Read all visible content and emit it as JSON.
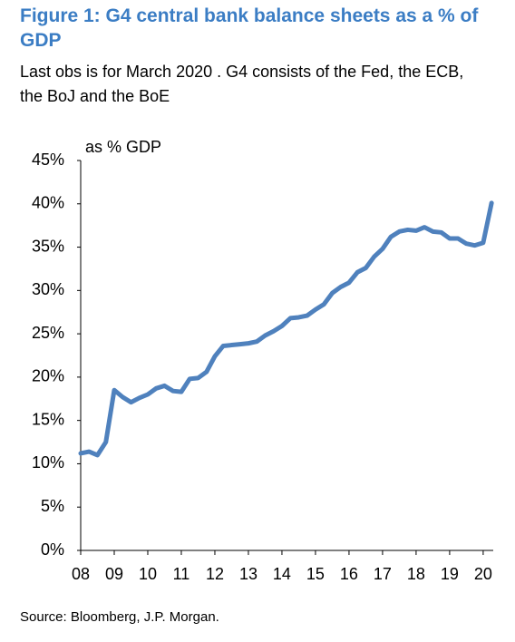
{
  "chart_data": {
    "type": "line",
    "title": "Figure 1: G4 central bank balance sheets as a % of GDP",
    "subtitle": "Last obs is for March 2020 . G4 consists of the Fed, the ECB, the BoJ and the BoE",
    "y_label": "as % GDP",
    "source": "Source: Bloomberg, J.P. Morgan.",
    "color": "#4f81bd",
    "x": [
      2008,
      2008.25,
      2008.5,
      2008.75,
      2009,
      2009.25,
      2009.5,
      2009.75,
      2010,
      2010.25,
      2010.5,
      2010.75,
      2011,
      2011.25,
      2011.5,
      2011.75,
      2012,
      2012.25,
      2012.5,
      2012.75,
      2013,
      2013.25,
      2013.5,
      2013.75,
      2014,
      2014.25,
      2014.5,
      2014.75,
      2015,
      2015.25,
      2015.5,
      2015.75,
      2016,
      2016.25,
      2016.5,
      2016.75,
      2017,
      2017.25,
      2017.5,
      2017.75,
      2018,
      2018.25,
      2018.5,
      2018.75,
      2019,
      2019.25,
      2019.5,
      2019.75,
      2020,
      2020.25
    ],
    "values": [
      11.2,
      11.4,
      11.0,
      12.5,
      18.5,
      17.7,
      17.1,
      17.6,
      18.0,
      18.7,
      19.0,
      18.4,
      18.3,
      19.8,
      19.9,
      20.6,
      22.4,
      23.6,
      23.7,
      23.8,
      23.9,
      24.1,
      24.8,
      25.3,
      25.9,
      26.8,
      26.9,
      27.1,
      27.8,
      28.4,
      29.7,
      30.4,
      30.9,
      32.1,
      32.6,
      33.9,
      34.8,
      36.2,
      36.8,
      37.0,
      36.9,
      37.3,
      36.8,
      36.7,
      36.0,
      36.0,
      35.4,
      35.2,
      35.5,
      40.1
    ],
    "xlim": [
      2008,
      2020.3
    ],
    "xticks": [
      {
        "value": 2008,
        "label": "08"
      },
      {
        "value": 2009,
        "label": "09"
      },
      {
        "value": 2010,
        "label": "10"
      },
      {
        "value": 2011,
        "label": "11"
      },
      {
        "value": 2012,
        "label": "12"
      },
      {
        "value": 2013,
        "label": "13"
      },
      {
        "value": 2014,
        "label": "14"
      },
      {
        "value": 2015,
        "label": "15"
      },
      {
        "value": 2016,
        "label": "16"
      },
      {
        "value": 2017,
        "label": "17"
      },
      {
        "value": 2018,
        "label": "18"
      },
      {
        "value": 2019,
        "label": "19"
      },
      {
        "value": 2020,
        "label": "20"
      }
    ],
    "ylim": [
      0,
      45
    ],
    "yticks": [
      {
        "value": 0,
        "label": "0%"
      },
      {
        "value": 5,
        "label": "5%"
      },
      {
        "value": 10,
        "label": "10%"
      },
      {
        "value": 15,
        "label": "15%"
      },
      {
        "value": 20,
        "label": "20%"
      },
      {
        "value": 25,
        "label": "25%"
      },
      {
        "value": 30,
        "label": "30%"
      },
      {
        "value": 35,
        "label": "35%"
      },
      {
        "value": 40,
        "label": "40%"
      },
      {
        "value": 45,
        "label": "45%"
      }
    ],
    "grid": false
  }
}
